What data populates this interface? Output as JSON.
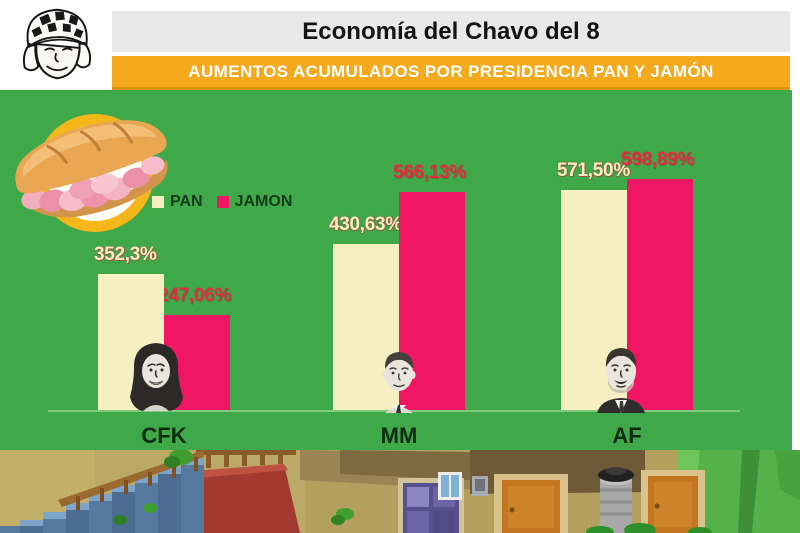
{
  "header": {
    "title": "Economía del Chavo del 8",
    "banner": "AUMENTOS ACUMULADOS POR PRESIDENCIA PAN Y JAMÓN"
  },
  "icons": {
    "chavo_face": "chavo-del-8-face-sketch",
    "sandwich": "ham-sandwich-badge",
    "cfk_portrait": "cfk-portrait-sketch",
    "mm_portrait": "mm-portrait-sketch",
    "af_portrait": "af-portrait-sketch",
    "footer_scene": "chavo-vecindad-patio-scene"
  },
  "colors": {
    "chart_background": "#3fa94a",
    "banner_orange": "#f5a91c",
    "banner_gray": "#e9e9e9",
    "pan_bar": "#f5efc2",
    "jamon_bar": "#f11663",
    "pan_label_text": "#f5eec1",
    "jamon_label_text": "#e22c41",
    "axis_line": "#7ecb7e"
  },
  "chart_data": {
    "type": "bar",
    "title": "Economía del Chavo del 8",
    "subtitle": "AUMENTOS ACUMULADOS POR PRESIDENCIA PAN Y JAMÓN",
    "categories": [
      "CFK",
      "MM",
      "AF"
    ],
    "series": [
      {
        "name": "PAN",
        "color": "#f5efc2",
        "values": [
          352.3,
          430.63,
          571.5
        ],
        "labels": [
          "352,3%",
          "430,63%",
          "571,50%"
        ]
      },
      {
        "name": "JAMON",
        "color": "#f11663",
        "values": [
          247.06,
          566.13,
          598.89
        ],
        "labels": [
          "247,06%",
          "566,13%",
          "598,89%"
        ]
      }
    ],
    "xlabel": "",
    "ylabel": "",
    "unit": "%",
    "ylim": [
      0,
      650
    ],
    "grid": false,
    "legend_position": "upper-left-inside"
  }
}
